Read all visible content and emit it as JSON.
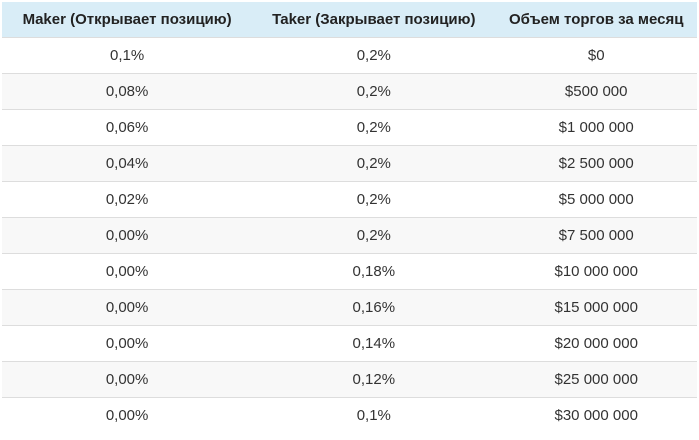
{
  "chart_data": {
    "type": "table",
    "columns": [
      "Maker (Открывает позицию)",
      "Taker (Закрывает позицию)",
      "Объем торгов за месяц"
    ],
    "rows": [
      [
        "0,1%",
        "0,2%",
        "$0"
      ],
      [
        "0,08%",
        "0,2%",
        "$500 000"
      ],
      [
        "0,06%",
        "0,2%",
        "$1 000 000"
      ],
      [
        "0,04%",
        "0,2%",
        "$2 500 000"
      ],
      [
        "0,02%",
        "0,2%",
        "$5 000 000"
      ],
      [
        "0,00%",
        "0,2%",
        "$7 500 000"
      ],
      [
        "0,00%",
        "0,18%",
        "$10 000 000"
      ],
      [
        "0,00%",
        "0,16%",
        "$15 000 000"
      ],
      [
        "0,00%",
        "0,14%",
        "$20 000 000"
      ],
      [
        "0,00%",
        "0,12%",
        "$25 000 000"
      ],
      [
        "0,00%",
        "0,1%",
        "$30 000 000"
      ]
    ],
    "colors": {
      "header_bg": "#d9edf7",
      "header_text": "#222222",
      "row_bg": "#ffffff",
      "row_alt_bg": "#f8f8f8",
      "border": "#dddddd",
      "cell_text": "#333333"
    },
    "layout": {
      "text_align": "center",
      "striped": true,
      "grid": "horizontal-only",
      "column_widths_pct": [
        36,
        35,
        29
      ]
    }
  }
}
